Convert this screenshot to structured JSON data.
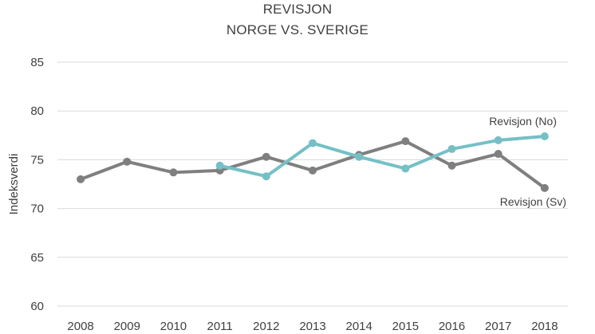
{
  "chart_data": {
    "type": "line",
    "title": "REVISJON",
    "subtitle": "NORGE VS. SVERIGE",
    "xlabel": "",
    "ylabel": "Indeksverdi",
    "ylim": [
      60,
      85
    ],
    "yticks": [
      60,
      65,
      70,
      75,
      80,
      85
    ],
    "categories": [
      "2008",
      "2009",
      "2010",
      "2011",
      "2012",
      "2013",
      "2014",
      "2015",
      "2016",
      "2017",
      "2018"
    ],
    "grid": true,
    "legend": "none",
    "series": [
      {
        "name": "Revisjon (Sv)",
        "color": "#7f7f7f",
        "values": [
          73.0,
          74.8,
          73.7,
          73.9,
          75.3,
          73.9,
          75.5,
          76.9,
          74.4,
          75.6,
          72.1
        ]
      },
      {
        "name": "Revisjon (No)",
        "color": "#74c0c5",
        "values": [
          null,
          null,
          null,
          74.4,
          73.3,
          76.7,
          75.3,
          74.1,
          76.1,
          77.0,
          77.4
        ]
      }
    ]
  }
}
